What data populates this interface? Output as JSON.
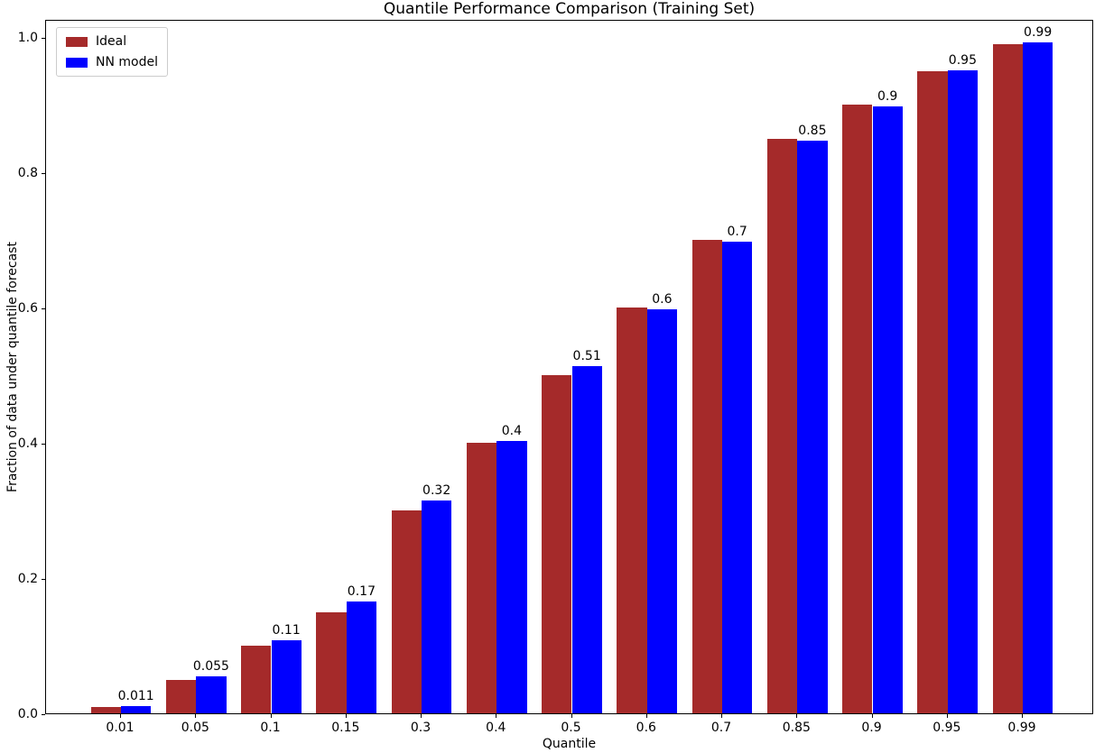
{
  "chart_data": {
    "type": "bar",
    "title": "Quantile Performance Comparison (Training Set)",
    "xlabel": "Quantile",
    "ylabel": "Fraction of data under quantile forecast",
    "categories": [
      "0.01",
      "0.05",
      "0.1",
      "0.15",
      "0.3",
      "0.4",
      "0.5",
      "0.6",
      "0.7",
      "0.85",
      "0.9",
      "0.95",
      "0.99"
    ],
    "series": [
      {
        "name": "Ideal",
        "color": "#a52a2a",
        "values": [
          0.01,
          0.05,
          0.1,
          0.15,
          0.3,
          0.4,
          0.5,
          0.6,
          0.7,
          0.85,
          0.9,
          0.95,
          0.99
        ]
      },
      {
        "name": "NN model",
        "color": "#0000ff",
        "values": [
          0.011,
          0.055,
          0.108,
          0.166,
          0.315,
          0.403,
          0.513,
          0.597,
          0.698,
          0.847,
          0.897,
          0.951,
          0.992
        ],
        "labels": [
          "0.011",
          "0.055",
          "0.11",
          "0.17",
          "0.32",
          "0.4",
          "0.51",
          "0.6",
          "0.7",
          "0.85",
          "0.9",
          "0.95",
          "0.99"
        ]
      }
    ],
    "bar_value_labels_on": "NN model",
    "yticks": [
      "0.0",
      "0.2",
      "0.4",
      "0.6",
      "0.8",
      "1.0"
    ],
    "ylim": [
      0,
      1.0267
    ],
    "grid": false,
    "legend_position": "upper left",
    "background": "#ffffff",
    "spine_color": "#000000"
  }
}
